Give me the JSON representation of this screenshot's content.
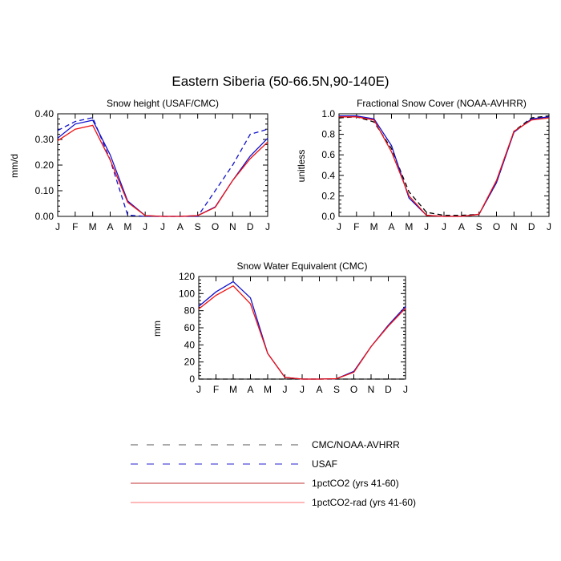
{
  "figure_title": "Eastern Siberia (50-66.5N,90-140E)",
  "legend": [
    {
      "label": "CMC/NOAA-AVHRR",
      "color": "#555555",
      "dash": "dashed"
    },
    {
      "label": "USAF",
      "color": "#2222cc",
      "dash": "dashed"
    },
    {
      "label": "1pctCO2 (yrs 41-60)",
      "color": "#c03030",
      "dash": "solid"
    },
    {
      "label": "1pctCO2-rad (yrs 41-60)",
      "color": "#ff7070",
      "dash": "solid"
    }
  ],
  "chart_data": [
    {
      "type": "line",
      "title": "Snow height (USAF/CMC)",
      "xlabel": "",
      "ylabel": "mm/d",
      "categories": [
        "J",
        "F",
        "M",
        "A",
        "M",
        "J",
        "J",
        "A",
        "S",
        "O",
        "N",
        "D",
        "J"
      ],
      "ylim": [
        0,
        0.4
      ],
      "yticks": [
        "0.00",
        "0.10",
        "0.20",
        "0.30",
        "0.40"
      ],
      "series": [
        {
          "style": "usaf",
          "color": "#1010cc",
          "dash": "6,4",
          "values": [
            0.335,
            0.37,
            0.385,
            0.22,
            0.005,
            0,
            0,
            0,
            0,
            0.1,
            0.2,
            0.32,
            0.34
          ]
        },
        {
          "style": "model-blue",
          "color": "#1010cc",
          "dash": "",
          "values": [
            0.305,
            0.36,
            0.375,
            0.24,
            0.06,
            0.003,
            0,
            0,
            0.003,
            0.037,
            0.14,
            0.235,
            0.305
          ]
        },
        {
          "style": "model-red",
          "color": "#ee1111",
          "dash": "",
          "values": [
            0.295,
            0.34,
            0.355,
            0.22,
            0.055,
            0.003,
            0,
            0,
            0.003,
            0.035,
            0.14,
            0.225,
            0.29
          ]
        }
      ]
    },
    {
      "type": "line",
      "title": "Fractional Snow Cover (NOAA-AVHRR)",
      "xlabel": "",
      "ylabel": "unitless",
      "categories": [
        "J",
        "F",
        "M",
        "A",
        "M",
        "J",
        "J",
        "A",
        "S",
        "O",
        "N",
        "D",
        "J"
      ],
      "ylim": [
        0,
        1
      ],
      "yticks": [
        "0.0",
        "0.2",
        "0.4",
        "0.6",
        "0.8",
        "1.0"
      ],
      "series": [
        {
          "style": "obs-black",
          "color": "#000000",
          "dash": "6,4",
          "values": [
            0.96,
            0.97,
            0.92,
            0.66,
            0.24,
            0.04,
            0.01,
            0.01,
            0.02,
            0.33,
            0.83,
            0.96,
            0.98
          ]
        },
        {
          "style": "model-blue",
          "color": "#1010cc",
          "dash": "",
          "values": [
            0.98,
            0.98,
            0.95,
            0.69,
            0.18,
            0.01,
            0,
            0,
            0.02,
            0.33,
            0.82,
            0.95,
            0.97
          ]
        },
        {
          "style": "model-red",
          "color": "#ee1111",
          "dash": "",
          "values": [
            0.97,
            0.97,
            0.94,
            0.63,
            0.2,
            0.01,
            0,
            0,
            0.02,
            0.35,
            0.83,
            0.94,
            0.96
          ]
        }
      ]
    },
    {
      "type": "line",
      "title": "Snow Water Equivalent (CMC)",
      "xlabel": "",
      "ylabel": "mm",
      "categories": [
        "J",
        "F",
        "M",
        "A",
        "M",
        "J",
        "J",
        "A",
        "S",
        "O",
        "N",
        "D",
        "J"
      ],
      "ylim": [
        0,
        120
      ],
      "yticks": [
        "0",
        "20",
        "40",
        "60",
        "80",
        "100",
        "120"
      ],
      "series": [
        {
          "style": "obs-black",
          "color": "#000000",
          "dash": "6,4",
          "values": [
            0,
            0,
            0,
            0,
            0,
            0,
            0,
            0,
            0,
            0,
            0,
            0,
            0
          ]
        },
        {
          "style": "model-blue",
          "color": "#1010cc",
          "dash": "",
          "values": [
            85,
            102,
            114,
            95,
            30,
            2,
            0,
            0,
            0.5,
            9,
            38,
            63,
            85
          ]
        },
        {
          "style": "model-red",
          "color": "#ee1111",
          "dash": "",
          "values": [
            82,
            98,
            109,
            88,
            30,
            2,
            0,
            0,
            0.5,
            8,
            38,
            62,
            83
          ]
        }
      ]
    }
  ]
}
